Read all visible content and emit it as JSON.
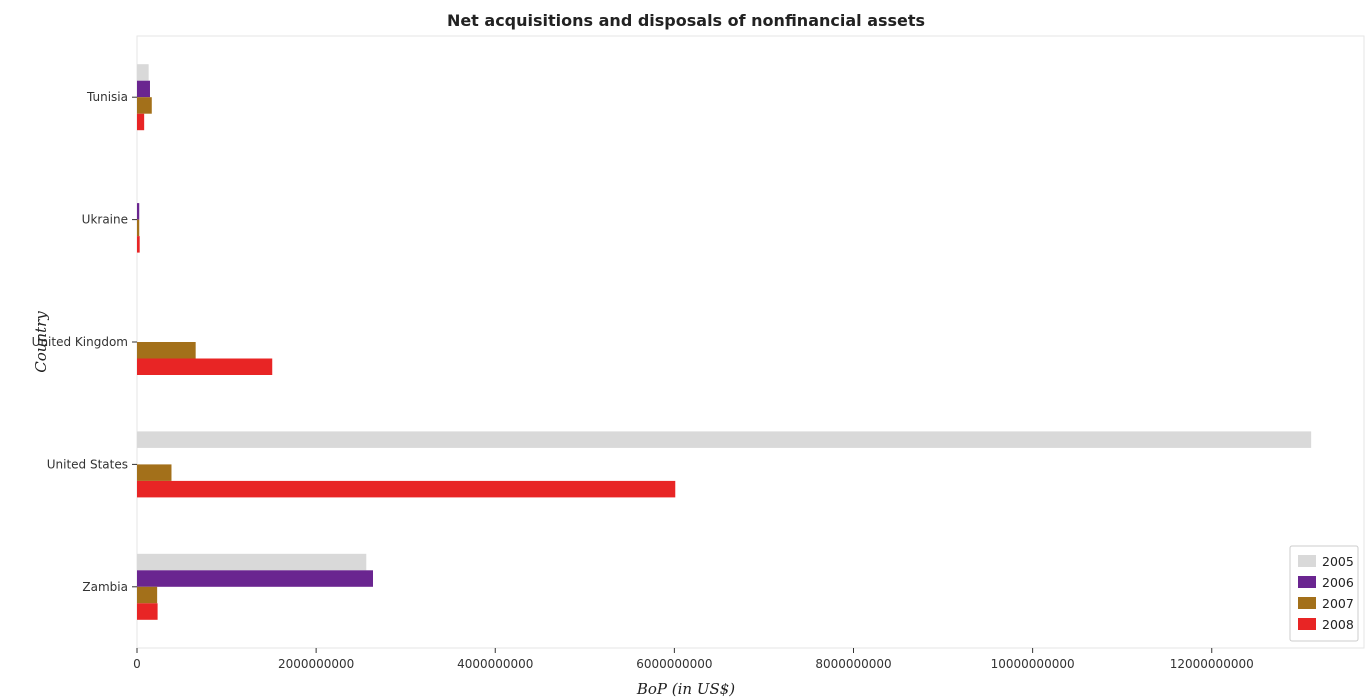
{
  "chart_data": {
    "type": "bar",
    "orientation": "horizontal",
    "title": "Net acquisitions and disposals of nonfinancial assets",
    "xlabel": "BoP (in US$)",
    "ylabel": "Country",
    "xlim": [
      0,
      13700000000
    ],
    "xticks": [
      0,
      2000000000,
      4000000000,
      6000000000,
      8000000000,
      10000000000,
      12000000000
    ],
    "xtick_labels": [
      "0",
      "2000000000",
      "4000000000",
      "6000000000",
      "8000000000",
      "10000000000",
      "12000000000"
    ],
    "categories": [
      "Tunisia",
      "Ukraine",
      "United Kingdom",
      "United States",
      "Zambia"
    ],
    "series": [
      {
        "name": "2005",
        "color": "#d9d9d9",
        "values": [
          130000000,
          0,
          0,
          13110000000,
          2560000000
        ]
      },
      {
        "name": "2006",
        "color": "#6a2590",
        "values": [
          145000000,
          25000000,
          0,
          0,
          2635000000
        ]
      },
      {
        "name": "2007",
        "color": "#a3701a",
        "values": [
          165000000,
          25000000,
          655000000,
          385000000,
          225000000
        ]
      },
      {
        "name": "2008",
        "color": "#e82525",
        "values": [
          80000000,
          30000000,
          1510000000,
          6010000000,
          230000000
        ]
      }
    ],
    "legend_position": "bottom-right",
    "grid": false
  }
}
